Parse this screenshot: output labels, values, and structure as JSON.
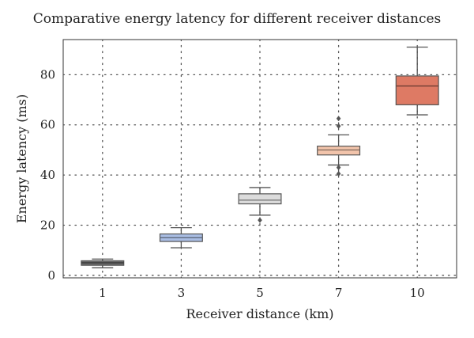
{
  "chart_data": {
    "type": "box",
    "title": "Comparative energy latency for different receiver distances",
    "xlabel": "Receiver distance (km)",
    "ylabel": "Energy latency (ms)",
    "categories": [
      "1",
      "3",
      "5",
      "7",
      "10"
    ],
    "ylim": [
      -1,
      94
    ],
    "yticks": [
      0,
      20,
      40,
      60,
      80
    ],
    "grid": "dotted",
    "boxes": [
      {
        "category": "1",
        "whisker_low": 3,
        "q1": 4,
        "median": 5,
        "q3": 5.8,
        "whisker_high": 6.5,
        "outliers": [],
        "color": "#6b6b6b"
      },
      {
        "category": "3",
        "whisker_low": 11,
        "q1": 13.5,
        "median": 15,
        "q3": 16.5,
        "whisker_high": 19,
        "outliers": [],
        "color": "#a9bde3"
      },
      {
        "category": "5",
        "whisker_low": 24,
        "q1": 28.5,
        "median": 30,
        "q3": 32.5,
        "whisker_high": 35,
        "outliers": [
          22
        ],
        "color": "#dcdcdc"
      },
      {
        "category": "7",
        "whisker_low": 44,
        "q1": 48,
        "median": 50,
        "q3": 51.5,
        "whisker_high": 56,
        "outliers": [
          40.5,
          43,
          59.5,
          62.5
        ],
        "color": "#f2c4ab"
      },
      {
        "category": "10",
        "whisker_low": 64,
        "q1": 68,
        "median": 75.5,
        "q3": 79.5,
        "whisker_high": 91,
        "outliers": [],
        "color": "#de7a64"
      }
    ]
  }
}
